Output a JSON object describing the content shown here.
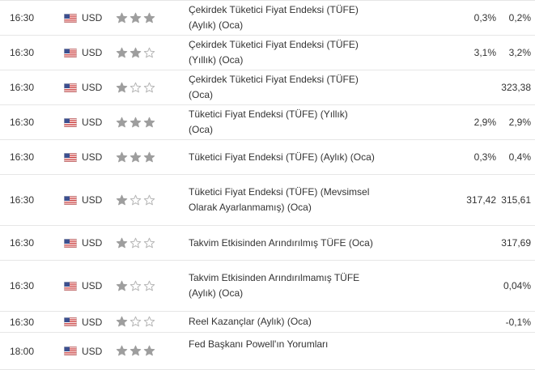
{
  "calendar": {
    "rows": [
      {
        "time": "16:30",
        "currency": "USD",
        "importance": 3,
        "event": "Çekirdek Tüketici Fiyat Endeksi (TÜFE) (Aylık) (Oca)",
        "actual": "",
        "forecast": "0,3%",
        "previous": "0,2%"
      },
      {
        "time": "16:30",
        "currency": "USD",
        "importance": 2,
        "event": "Çekirdek Tüketici Fiyat Endeksi (TÜFE) (Yıllık) (Oca)",
        "actual": "",
        "forecast": "3,1%",
        "previous": "3,2%"
      },
      {
        "time": "16:30",
        "currency": "USD",
        "importance": 1,
        "event": "Çekirdek Tüketici Fiyat Endeksi (TÜFE) (Oca)",
        "actual": "",
        "forecast": "",
        "previous": "323,38"
      },
      {
        "time": "16:30",
        "currency": "USD",
        "importance": 3,
        "event": "Tüketici Fiyat Endeksi (TÜFE) (Yıllık) (Oca)",
        "actual": "",
        "forecast": "2,9%",
        "previous": "2,9%"
      },
      {
        "time": "16:30",
        "currency": "USD",
        "importance": 3,
        "event": "Tüketici Fiyat Endeksi (TÜFE) (Aylık) (Oca)",
        "actual": "",
        "forecast": "0,3%",
        "previous": "0,4%"
      },
      {
        "time": "16:30",
        "currency": "USD",
        "importance": 1,
        "event": "Tüketici Fiyat Endeksi (TÜFE) (Mevsimsel Olarak Ayarlanmamış) (Oca)",
        "actual": "",
        "forecast": "317,42",
        "previous": "315,61"
      },
      {
        "time": "16:30",
        "currency": "USD",
        "importance": 1,
        "event": "Takvim Etkisinden Arındırılmış TÜFE (Oca)",
        "actual": "",
        "forecast": "",
        "previous": "317,69"
      },
      {
        "time": "16:30",
        "currency": "USD",
        "importance": 1,
        "event": "Takvim Etkisinden Arındırılmamış TÜFE (Aylık) (Oca)",
        "actual": "",
        "forecast": "",
        "previous": "0,04%"
      },
      {
        "time": "16:30",
        "currency": "USD",
        "importance": 1,
        "event": "Reel Kazançlar (Aylık) (Oca)",
        "actual": "",
        "forecast": "",
        "previous": "-0,1%"
      },
      {
        "time": "18:00",
        "currency": "USD",
        "importance": 3,
        "event": "Fed Başkanı Powell'ın Yorumları",
        "actual": "",
        "forecast": "",
        "previous": ""
      }
    ]
  },
  "colors": {
    "star_filled": "#9e9e9e",
    "star_empty": "#b5b5b5",
    "row_border": "#e6e6e6",
    "text": "#333333"
  },
  "icons": {
    "flag": "us-flag-icon",
    "star_filled": "star-filled-icon",
    "star_empty": "star-empty-icon"
  }
}
